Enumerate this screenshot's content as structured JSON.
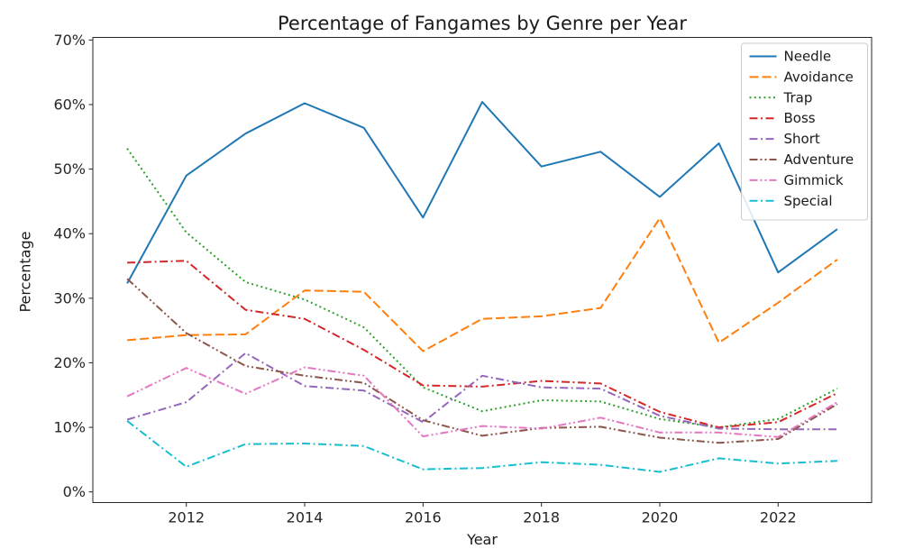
{
  "chart_data": {
    "type": "line",
    "title": "Percentage of Fangames by Genre per Year",
    "xlabel": "Year",
    "ylabel": "Percentage",
    "x": [
      2011,
      2012,
      2013,
      2014,
      2015,
      2016,
      2017,
      2018,
      2019,
      2020,
      2021,
      2022,
      2023
    ],
    "xticks": [
      2012,
      2014,
      2016,
      2018,
      2020,
      2022
    ],
    "yticks": [
      0,
      10,
      20,
      30,
      40,
      50,
      60,
      70
    ],
    "ytick_suffix": "%",
    "ylim": [
      0,
      70
    ],
    "grid": false,
    "legend_position": "upper right",
    "legend_border_color": "#cccccc",
    "series": [
      {
        "name": "Needle",
        "color": "#1f77b4",
        "linestyle": "solid",
        "values": [
          32.3,
          49.0,
          55.5,
          60.2,
          56.4,
          42.5,
          60.4,
          50.4,
          52.7,
          45.7,
          54.0,
          34.0,
          40.7
        ]
      },
      {
        "name": "Avoidance",
        "color": "#ff7f0e",
        "linestyle": "dashed",
        "values": [
          23.5,
          24.3,
          24.4,
          31.2,
          31.0,
          21.8,
          26.8,
          27.2,
          28.5,
          42.4,
          23.1,
          29.3,
          36.0
        ]
      },
      {
        "name": "Trap",
        "color": "#2ca02c",
        "linestyle": "dotted",
        "values": [
          53.2,
          40.2,
          32.5,
          29.8,
          25.5,
          16.2,
          12.5,
          14.2,
          14.0,
          11.3,
          10.0,
          11.3,
          16.0
        ]
      },
      {
        "name": "Boss",
        "color": "#d62728",
        "linestyle": "dashdot",
        "values": [
          35.5,
          35.8,
          28.2,
          26.8,
          22.0,
          16.5,
          16.3,
          17.2,
          16.8,
          12.4,
          10.0,
          10.8,
          15.3
        ]
      },
      {
        "name": "Short",
        "color": "#9467bd",
        "linestyle": "dashdot",
        "values": [
          11.2,
          13.9,
          21.5,
          16.4,
          15.7,
          10.8,
          18.0,
          16.2,
          16.0,
          11.8,
          9.8,
          9.7,
          9.7
        ]
      },
      {
        "name": "Adventure",
        "color": "#8c564b",
        "linestyle": "dashdotdot",
        "values": [
          33.0,
          24.6,
          19.5,
          18.0,
          16.9,
          11.1,
          8.7,
          9.9,
          10.1,
          8.4,
          7.6,
          8.2,
          13.6
        ]
      },
      {
        "name": "Gimmick",
        "color": "#e377c2",
        "linestyle": "dashdotdot",
        "values": [
          14.8,
          19.2,
          15.2,
          19.3,
          18.0,
          8.6,
          10.2,
          9.8,
          11.5,
          9.2,
          9.2,
          8.5,
          13.9
        ]
      },
      {
        "name": "Special",
        "color": "#17becf",
        "linestyle": "dashdot",
        "values": [
          11.0,
          3.9,
          7.4,
          7.5,
          7.1,
          3.5,
          3.7,
          4.6,
          4.2,
          3.1,
          5.2,
          4.4,
          4.8
        ]
      }
    ]
  }
}
